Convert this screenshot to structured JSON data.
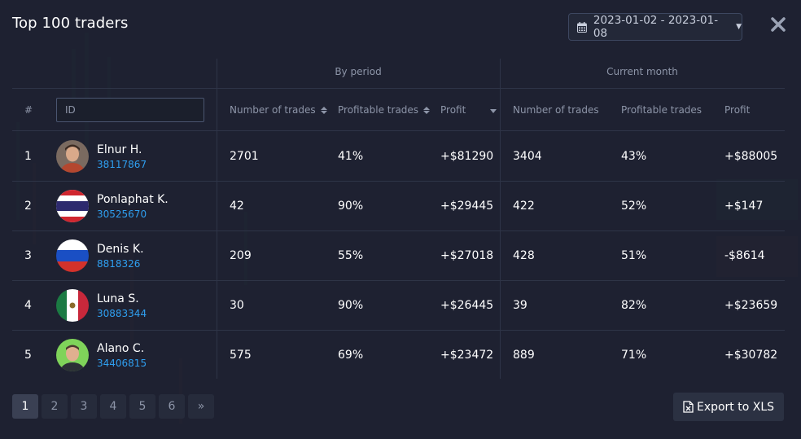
{
  "title": "Top 100 traders",
  "date_range": "2023-01-02 - 2023-01-08",
  "groups": {
    "by_period": "By period",
    "current_month": "Current month"
  },
  "columns": {
    "rank": "#",
    "id_placeholder": "ID",
    "period_trades": "Number of trades",
    "period_profitable": "Profitable trades",
    "period_profit": "Profit",
    "month_trades": "Number of trades",
    "month_profitable": "Profitable trades",
    "month_profit": "Profit"
  },
  "rows": [
    {
      "rank": "1",
      "name": "Elnur H.",
      "id": "38117867",
      "avatar": "person-photo",
      "p_trades": "2701",
      "p_profitable": "41%",
      "p_profit": "+$81290",
      "m_trades": "3404",
      "m_profitable": "43%",
      "m_profit": "+$88005"
    },
    {
      "rank": "2",
      "name": "Ponlaphat K.",
      "id": "30525670",
      "avatar": "thailand-flag",
      "p_trades": "42",
      "p_profitable": "90%",
      "p_profit": "+$29445",
      "m_trades": "422",
      "m_profitable": "52%",
      "m_profit": "+$147"
    },
    {
      "rank": "3",
      "name": "Denis K.",
      "id": "8818326",
      "avatar": "russia-flag",
      "p_trades": "209",
      "p_profitable": "55%",
      "p_profit": "+$27018",
      "m_trades": "428",
      "m_profitable": "51%",
      "m_profit": "-$8614"
    },
    {
      "rank": "4",
      "name": "Luna S.",
      "id": "30883344",
      "avatar": "mexico-flag",
      "p_trades": "30",
      "p_profitable": "90%",
      "p_profit": "+$26445",
      "m_trades": "39",
      "m_profitable": "82%",
      "m_profit": "+$23659"
    },
    {
      "rank": "5",
      "name": "Alano C.",
      "id": "34406815",
      "avatar": "person-photo",
      "p_trades": "575",
      "p_profitable": "69%",
      "p_profit": "+$23472",
      "m_trades": "889",
      "m_profitable": "71%",
      "m_profit": "+$30782"
    }
  ],
  "pagination": {
    "pages": [
      "1",
      "2",
      "3",
      "4",
      "5",
      "6"
    ],
    "next": "»",
    "current": "1"
  },
  "export_label": "Export to XLS",
  "colors": {
    "background": "#1e2231",
    "link": "#2f9ff0",
    "muted": "#8d95a8",
    "border": "#2e3447"
  }
}
